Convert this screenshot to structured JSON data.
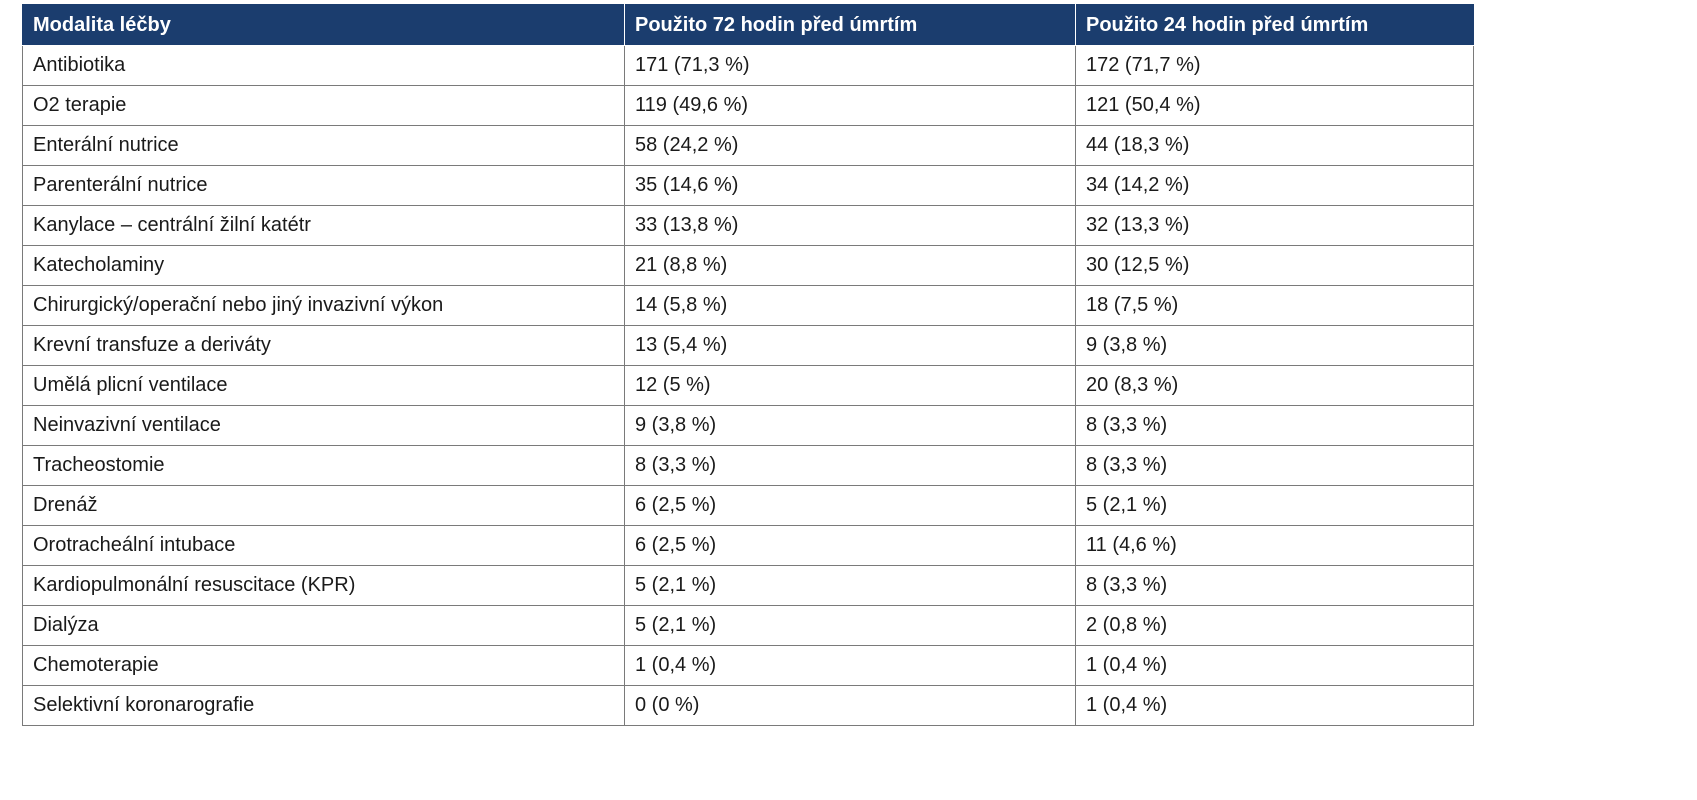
{
  "table": {
    "headers": [
      "Modalita léčby",
      "Použito 72 hodin před úmrtím",
      "Použito 24 hodin před úmrtím"
    ],
    "rows": [
      [
        "Antibiotika",
        "171 (71,3 %)",
        "172 (71,7 %)"
      ],
      [
        "O2 terapie",
        "119 (49,6 %)",
        "121 (50,4 %)"
      ],
      [
        "Enterální nutrice",
        "58 (24,2 %)",
        "44 (18,3 %)"
      ],
      [
        "Parenterální nutrice",
        "35 (14,6 %)",
        "34 (14,2 %)"
      ],
      [
        "Kanylace – centrální žilní katétr",
        "33 (13,8 %)",
        "32 (13,3 %)"
      ],
      [
        "Katecholaminy",
        "21 (8,8 %)",
        "30 (12,5 %)"
      ],
      [
        "Chirurgický/operační nebo jiný invazivní výkon",
        "14 (5,8 %)",
        "18 (7,5 %)"
      ],
      [
        "Krevní transfuze a deriváty",
        "13 (5,4 %)",
        "9 (3,8 %)"
      ],
      [
        "Umělá plicní ventilace",
        "12 (5 %)",
        "20 (8,3 %)"
      ],
      [
        "Neinvazivní ventilace",
        "9 (3,8 %)",
        "8 (3,3 %)"
      ],
      [
        "Tracheostomie",
        "8 (3,3 %)",
        "8 (3,3 %)"
      ],
      [
        "Drenáž",
        "6 (2,5 %)",
        "5 (2,1 %)"
      ],
      [
        "Orotracheální intubace",
        "6 (2,5 %)",
        "11 (4,6 %)"
      ],
      [
        "Kardiopulmonální resuscitace (KPR)",
        "5 (2,1 %)",
        "8 (3,3 %)"
      ],
      [
        "Dialýza",
        "5 (2,1 %)",
        "2 (0,8 %)"
      ],
      [
        "Chemoterapie",
        "1 (0,4 %)",
        "1 (0,4 %)"
      ],
      [
        "Selektivní koronarografie",
        "0 (0 %)",
        "1 (0,4 %)"
      ]
    ]
  },
  "colors": {
    "header_background": "#1b3d6e",
    "header_text": "#ffffff",
    "cell_border": "#7a7a7a",
    "body_text": "#1a1a1a"
  }
}
